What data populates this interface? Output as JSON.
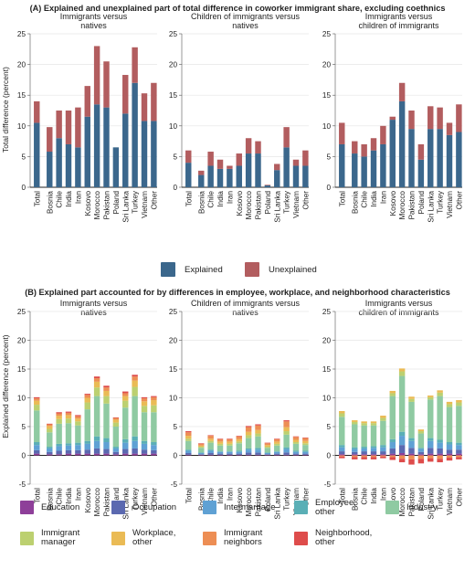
{
  "colors": {
    "explained": "#3b678c",
    "unexplained": "#b25d5f",
    "Education": "#8e3f99",
    "Occupation": "#5b69b0",
    "Intermarriage": "#5fa1d4",
    "Employee, other": "#5aafb6",
    "Industry": "#8fcaa2",
    "Immigrant manager": "#bcd070",
    "Workplace, other": "#eabb55",
    "Immigrant neighbors": "#ed8e54",
    "Neighborhood, other": "#de4c4b"
  },
  "panel_a": {
    "title": "(A) Explained and unexplained part of total difference in coworker immigrant share, excluding coethnics",
    "ylabel": "Total difference (percent)",
    "legend": [
      "Explained",
      "Unexplained"
    ]
  },
  "panel_b": {
    "title": "(B) Explained part accounted for by differences in employee, workplace, and neighborhood characteristics",
    "ylabel": "Explained difference (percent)",
    "legend": [
      "Education",
      "Occupation",
      "Intermarriage",
      "Employee, other",
      "Industry",
      "Immigrant manager",
      "Workplace, other",
      "Immigrant neighbors",
      "Neighborhood, other"
    ],
    "legend_display": [
      "Education",
      "Occupation",
      "Intermarriage",
      "Employee,\nother",
      "Industry",
      "Immigrant\nmanager",
      "Workplace,\nother",
      "Immigrant\nneighbors",
      "Neighborhood,\nother"
    ]
  },
  "chart_data": [
    {
      "type": "bar",
      "stacked": true,
      "panel": "A",
      "title": "Immigrants versus natives",
      "ylabel": "Total difference (percent)",
      "ylim": [
        0,
        25
      ],
      "yticks": [
        0,
        5,
        10,
        15,
        20,
        25
      ],
      "categories": [
        "Total",
        "Bosnia",
        "Chile",
        "India",
        "Iran",
        "Kosovo",
        "Morocco",
        "Pakistan",
        "Poland",
        "Sri Lanka",
        "Turkey",
        "Vietnam",
        "Other"
      ],
      "series": [
        {
          "name": "Explained",
          "values": [
            10.5,
            5.8,
            8.0,
            7.0,
            6.5,
            11.5,
            13.5,
            13.0,
            6.5,
            12.0,
            17.0,
            10.8,
            10.8
          ]
        },
        {
          "name": "Unexplained",
          "values": [
            3.5,
            4.0,
            4.5,
            5.5,
            6.5,
            5.0,
            9.5,
            7.5,
            0.0,
            6.3,
            5.8,
            4.5,
            6.2
          ]
        }
      ]
    },
    {
      "type": "bar",
      "stacked": true,
      "panel": "A",
      "title": "Children of immigrants versus natives",
      "ylabel": "",
      "ylim": [
        0,
        25
      ],
      "yticks": [
        0,
        5,
        10,
        15,
        20,
        25
      ],
      "categories": [
        "Total",
        "Bosnia",
        "Chile",
        "India",
        "Iran",
        "Kosovo",
        "Morocco",
        "Pakistan",
        "Poland",
        "Sri Lanka",
        "Turkey",
        "Vietnam",
        "Other"
      ],
      "series": [
        {
          "name": "Explained",
          "values": [
            4.0,
            2.0,
            3.5,
            3.0,
            3.0,
            3.5,
            5.5,
            5.5,
            0.3,
            2.8,
            6.5,
            3.5,
            3.5
          ]
        },
        {
          "name": "Unexplained",
          "values": [
            2.0,
            0.7,
            2.3,
            1.5,
            0.5,
            2.0,
            2.5,
            2.0,
            0.1,
            1.0,
            3.3,
            1.0,
            2.5
          ]
        }
      ]
    },
    {
      "type": "bar",
      "stacked": true,
      "panel": "A",
      "title": "Immigrants versus children of immigrants",
      "ylabel": "",
      "ylim": [
        0,
        25
      ],
      "yticks": [
        0,
        5,
        10,
        15,
        20,
        25
      ],
      "categories": [
        "Total",
        "Bosnia",
        "Chile",
        "India",
        "Iran",
        "Kosovo",
        "Morocco",
        "Pakistan",
        "Poland",
        "Sri Lanka",
        "Turkey",
        "Vietnam",
        "Other"
      ],
      "series": [
        {
          "name": "Explained",
          "values": [
            7.0,
            5.5,
            5.0,
            6.0,
            7.0,
            11.0,
            14.0,
            9.5,
            4.5,
            9.5,
            9.5,
            8.5,
            9.0
          ]
        },
        {
          "name": "Unexplained",
          "values": [
            3.5,
            2.0,
            2.0,
            2.0,
            3.0,
            0.5,
            3.0,
            3.0,
            2.5,
            3.7,
            3.5,
            2.0,
            4.5
          ]
        }
      ]
    },
    {
      "type": "bar",
      "stacked": true,
      "panel": "B",
      "title": "Immigrants versus natives",
      "ylabel": "Explained difference (percent)",
      "ylim": [
        -5,
        25
      ],
      "yticks": [
        -5,
        0,
        5,
        10,
        15,
        20,
        25
      ],
      "categories": [
        "Total",
        "Bosnia",
        "Chile",
        "India",
        "Iran",
        "Kosovo",
        "Morocco",
        "Pakistan",
        "Poland",
        "Sri Lanka",
        "Turkey",
        "Vietnam",
        "Other"
      ],
      "series": [
        {
          "name": "Education",
          "values": [
            0.3,
            0.2,
            0.2,
            0.3,
            0.3,
            0.3,
            0.3,
            0.3,
            0.2,
            0.3,
            0.3,
            0.3,
            0.3
          ]
        },
        {
          "name": "Occupation",
          "values": [
            0.6,
            0.4,
            0.6,
            0.6,
            0.6,
            0.7,
            0.9,
            0.8,
            0.4,
            0.8,
            0.9,
            0.7,
            0.6
          ]
        },
        {
          "name": "Intermarriage",
          "values": [
            0.9,
            0.6,
            0.8,
            0.8,
            0.9,
            1.0,
            1.3,
            1.2,
            0.6,
            1.1,
            1.3,
            1.0,
            0.9
          ]
        },
        {
          "name": "Employee, other",
          "values": [
            0.5,
            0.3,
            0.4,
            0.4,
            0.4,
            0.5,
            0.8,
            0.7,
            0.3,
            0.6,
            0.8,
            0.5,
            0.5
          ]
        },
        {
          "name": "Industry",
          "values": [
            5.5,
            2.5,
            3.5,
            3.5,
            3.0,
            5.5,
            7.0,
            6.0,
            3.5,
            5.5,
            7.0,
            5.0,
            5.2
          ]
        },
        {
          "name": "Immigrant manager",
          "values": [
            1.0,
            0.6,
            0.8,
            0.8,
            0.7,
            1.2,
            1.5,
            1.3,
            0.7,
            1.2,
            1.6,
            1.1,
            1.2
          ]
        },
        {
          "name": "Workplace, other",
          "values": [
            0.7,
            0.5,
            0.6,
            0.6,
            0.5,
            0.8,
            1.0,
            0.9,
            0.5,
            0.8,
            1.1,
            0.8,
            0.9
          ]
        },
        {
          "name": "Immigrant neighbors",
          "values": [
            0.4,
            0.3,
            0.4,
            0.4,
            0.4,
            0.5,
            0.6,
            0.6,
            0.3,
            0.5,
            0.7,
            0.5,
            0.5
          ]
        },
        {
          "name": "Neighborhood, other",
          "values": [
            0.2,
            0.1,
            0.2,
            0.2,
            0.2,
            0.2,
            0.3,
            0.3,
            0.1,
            0.3,
            0.3,
            0.2,
            0.2
          ]
        }
      ]
    },
    {
      "type": "bar",
      "stacked": true,
      "panel": "B",
      "title": "Children of immigrants versus natives",
      "ylabel": "",
      "ylim": [
        -5,
        25
      ],
      "yticks": [
        -5,
        0,
        5,
        10,
        15,
        20,
        25
      ],
      "categories": [
        "Total",
        "Bosnia",
        "Chile",
        "India",
        "Iran",
        "Kosovo",
        "Morocco",
        "Pakistan",
        "Poland",
        "Sri Lanka",
        "Turkey",
        "Vietnam",
        "Other"
      ],
      "series": [
        {
          "name": "Education",
          "values": [
            0.1,
            0.1,
            0.1,
            0.1,
            0.1,
            0.1,
            0.1,
            0.1,
            0.1,
            0.1,
            0.1,
            0.1,
            0.1
          ]
        },
        {
          "name": "Occupation",
          "values": [
            0.3,
            0.1,
            0.3,
            0.2,
            0.2,
            0.2,
            0.4,
            0.4,
            0.1,
            0.2,
            0.4,
            0.2,
            0.2
          ]
        },
        {
          "name": "Intermarriage",
          "values": [
            0.4,
            0.2,
            0.4,
            0.3,
            0.3,
            0.3,
            0.5,
            0.5,
            0.2,
            0.3,
            0.6,
            0.3,
            0.3
          ]
        },
        {
          "name": "Employee, other",
          "values": [
            0.2,
            0.1,
            0.2,
            0.1,
            0.1,
            0.2,
            0.2,
            0.3,
            0.1,
            0.1,
            0.3,
            0.2,
            0.2
          ]
        },
        {
          "name": "Industry",
          "values": [
            1.5,
            0.8,
            1.2,
            1.0,
            1.0,
            1.3,
            1.8,
            2.0,
            0.8,
            1.0,
            2.2,
            1.2,
            1.0
          ]
        },
        {
          "name": "Immigrant manager",
          "values": [
            0.4,
            0.2,
            0.3,
            0.3,
            0.3,
            0.3,
            0.5,
            0.5,
            0.2,
            0.3,
            0.6,
            0.3,
            0.3
          ]
        },
        {
          "name": "Workplace, other",
          "values": [
            0.5,
            0.2,
            0.4,
            0.4,
            0.4,
            0.4,
            0.6,
            0.6,
            0.3,
            0.4,
            0.7,
            0.4,
            0.4
          ]
        },
        {
          "name": "Immigrant neighbors",
          "values": [
            0.6,
            0.3,
            0.5,
            0.4,
            0.4,
            0.5,
            0.8,
            0.8,
            0.3,
            0.4,
            1.0,
            0.5,
            0.5
          ]
        },
        {
          "name": "Neighborhood, other",
          "values": [
            0.2,
            0.1,
            0.1,
            0.1,
            0.1,
            0.1,
            0.2,
            0.2,
            0.1,
            0.1,
            0.2,
            0.1,
            0.1
          ]
        }
      ]
    },
    {
      "type": "bar",
      "stacked": true,
      "panel": "B",
      "title": "Immigrants versus children of immigrants",
      "ylabel": "",
      "ylim": [
        -5,
        25
      ],
      "yticks": [
        -5,
        0,
        5,
        10,
        15,
        20,
        25
      ],
      "categories": [
        "Total",
        "Bosnia",
        "Chile",
        "India",
        "Iran",
        "Kosovo",
        "Morocco",
        "Pakistan",
        "Poland",
        "Sri Lanka",
        "Turkey",
        "Vietnam",
        "Other"
      ],
      "series": [
        {
          "name": "Education",
          "values": [
            0.2,
            0.2,
            0.2,
            0.2,
            0.2,
            0.3,
            0.4,
            0.3,
            0.2,
            0.3,
            0.3,
            0.3,
            0.3
          ]
        },
        {
          "name": "Occupation",
          "values": [
            0.5,
            0.4,
            0.5,
            0.5,
            0.5,
            0.9,
            1.4,
            1.0,
            0.4,
            1.0,
            0.9,
            0.7,
            0.7
          ]
        },
        {
          "name": "Intermarriage",
          "values": [
            0.7,
            0.5,
            0.5,
            0.6,
            0.7,
            1.1,
            1.6,
            1.2,
            0.5,
            1.2,
            1.0,
            0.9,
            0.8
          ]
        },
        {
          "name": "Employee, other",
          "values": [
            0.4,
            0.3,
            0.3,
            0.3,
            0.4,
            0.5,
            0.7,
            0.5,
            0.2,
            0.5,
            0.5,
            0.4,
            0.4
          ]
        },
        {
          "name": "Industry",
          "values": [
            4.9,
            4.0,
            3.7,
            3.6,
            4.2,
            7.5,
            9.7,
            6.3,
            2.5,
            6.7,
            7.6,
            6.1,
            6.4
          ]
        },
        {
          "name": "Immigrant manager",
          "values": [
            0.6,
            0.4,
            0.4,
            0.4,
            0.5,
            0.5,
            0.8,
            0.5,
            0.4,
            0.4,
            0.6,
            0.5,
            0.6
          ]
        },
        {
          "name": "Workplace, other",
          "values": [
            0.4,
            0.3,
            0.3,
            0.3,
            0.4,
            0.4,
            0.5,
            0.4,
            0.3,
            0.3,
            0.4,
            0.4,
            0.4
          ]
        },
        {
          "name": "Immigrant neighbors",
          "values": [
            -0.2,
            -0.3,
            -0.3,
            -0.3,
            -0.2,
            -0.3,
            -0.6,
            -0.7,
            -0.6,
            -0.5,
            -0.6,
            -0.4,
            -0.3
          ]
        },
        {
          "name": "Neighborhood, other",
          "values": [
            -0.3,
            -0.4,
            -0.4,
            -0.4,
            -0.3,
            -0.5,
            -0.6,
            -0.9,
            -0.8,
            -0.6,
            -0.6,
            -0.5,
            -0.4
          ]
        }
      ]
    }
  ]
}
